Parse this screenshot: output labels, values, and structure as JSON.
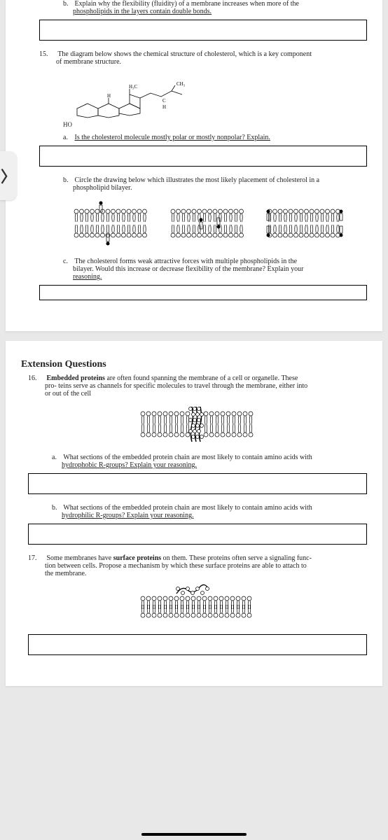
{
  "page1": {
    "q14b_let": "b.",
    "q14b_text1": "Explain why the flexibility (fluidity) of a membrane increases when more of the",
    "q14b_text2": "phospholipids in the layers contain double bonds.",
    "q15_num": "15.",
    "q15_text1": "The diagram below shows the chemical structure of cholesterol, which is a key component",
    "q15_text2": "of membrane structure.",
    "chol_labels": {
      "h3c": "H₃C",
      "ch3": "CH₃",
      "c": "C",
      "h": "H",
      "ho": "HO"
    },
    "q15a_let": "a.",
    "q15a_text": "Is the cholesterol molecule mostly polar or mostly nonpolar? Explain.",
    "q15b_let": "b.",
    "q15b_text1": "Circle the drawing below which illustrates the most likely placement of cholesterol in a",
    "q15b_text2": "phospholipid bilayer.",
    "q15c_let": "c.",
    "q15c_text1": "The cholesterol forms weak attractive forces with multiple phospholipids in the",
    "q15c_text2": "bilayer. Would this increase or decrease flexibility of the membrane? Explain your",
    "q15c_text3": "reasoning."
  },
  "page2": {
    "section": "Extension Questions",
    "q16_num": "16.",
    "q16_text1a": "Embedded proteins",
    "q16_text1b": " are often found spanning the membrane of a cell or organelle. These",
    "q16_text2": "pro- teins serve as channels for specific molecules to travel through the membrane, either into",
    "q16_text3": "or out of the cell",
    "q16a_let": "a.",
    "q16a_text1": "What sections of the embedded protein chain are most likely to contain amino acids with",
    "q16a_text2": "hydrophobic R-groups? Explain your reasoning.",
    "q16b_let": "b.",
    "q16b_text1": "What sections of the embedded protein chain are most likely to contain amino acids with",
    "q16b_text2": "hydrophilic R-groups? Explain your reasoning.",
    "q17_num": "17.",
    "q17_text1a": "Some membranes have ",
    "q17_text1b": "surface proteins",
    "q17_text1c": " on them. These proteins often serve a signaling func-",
    "q17_text2": "tion between cells. Propose a mechanism by which these surface proteins are able to attach to",
    "q17_text3": "the membrane."
  },
  "chev": "〉",
  "colors": {
    "head": "#000",
    "tail": "#000",
    "chol": "#000"
  }
}
